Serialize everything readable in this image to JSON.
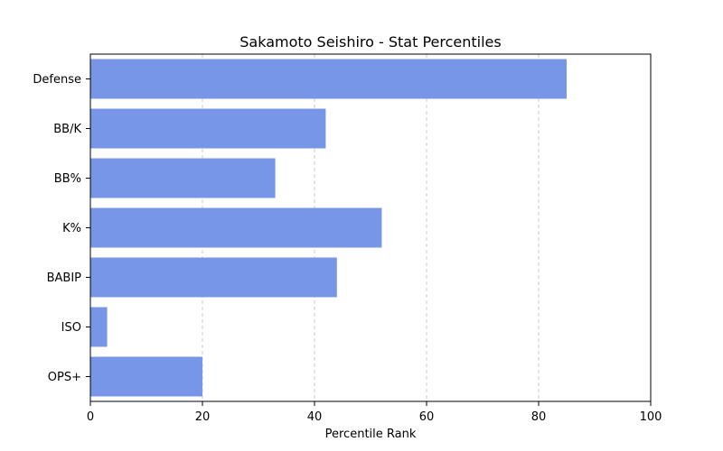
{
  "chart_data": {
    "type": "bar",
    "orientation": "horizontal",
    "title": "Sakamoto Seishiro - Stat Percentiles",
    "xlabel": "Percentile Rank",
    "ylabel": "",
    "xlim": [
      0,
      100
    ],
    "x_ticks": [
      "0",
      "20",
      "40",
      "60",
      "80",
      "100"
    ],
    "grid": "x-axis dashed",
    "bar_color": "#7896E8",
    "categories": [
      "Defense",
      "BB/K",
      "BB%",
      "K%",
      "BABIP",
      "ISO",
      "OPS+"
    ],
    "values": [
      85,
      42,
      33,
      52,
      44,
      3,
      20
    ]
  }
}
